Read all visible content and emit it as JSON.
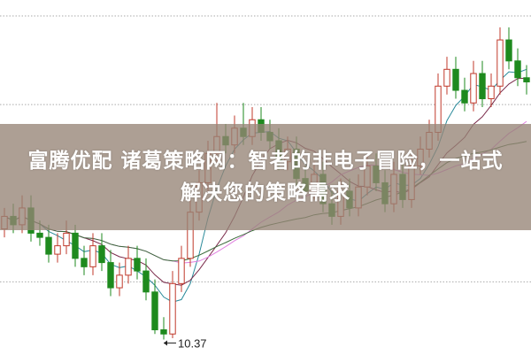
{
  "title": "富腾优配 诸葛策略网：智者的非电子冒险，一站式解决您的策略需求",
  "chart_data": {
    "type": "candlestick",
    "ylim": [
      10.0,
      18.45
    ],
    "gridlines": [
      18.07,
      15.96,
      11.74
    ],
    "grid": "dotted horizontal",
    "low_annotation": {
      "label": "10.37",
      "value": 10.37,
      "index": 18
    },
    "colors": {
      "up": "#c0392b",
      "down": "#1e8a1e",
      "ma5": "#2a8a9a",
      "ma10": "#7a2a4a",
      "ma20": "#e080e0",
      "ma30": "#3a6a3a",
      "ma60": "#2aa0b0",
      "grid": "#aaaaaa"
    },
    "ma_periods": [
      5,
      10,
      20,
      30
    ],
    "ohlc": [
      [
        13.0,
        13.5,
        12.8,
        13.3
      ],
      [
        13.3,
        13.6,
        12.9,
        13.1
      ],
      [
        13.1,
        13.8,
        12.9,
        13.5
      ],
      [
        13.5,
        13.8,
        12.7,
        12.9
      ],
      [
        12.9,
        13.2,
        12.6,
        12.8
      ],
      [
        12.8,
        13.1,
        12.2,
        12.4
      ],
      [
        12.4,
        12.9,
        12.2,
        12.6
      ],
      [
        12.6,
        13.2,
        12.4,
        12.9
      ],
      [
        12.9,
        13.1,
        12.1,
        12.3
      ],
      [
        12.3,
        12.6,
        11.9,
        12.1
      ],
      [
        12.1,
        12.9,
        11.9,
        12.6
      ],
      [
        12.6,
        12.9,
        12.0,
        12.2
      ],
      [
        12.2,
        12.5,
        11.4,
        11.6
      ],
      [
        11.6,
        12.2,
        11.4,
        11.9
      ],
      [
        11.9,
        12.6,
        11.7,
        12.3
      ],
      [
        12.3,
        12.6,
        11.8,
        12.0
      ],
      [
        12.0,
        12.3,
        11.3,
        11.5
      ],
      [
        11.5,
        11.8,
        10.5,
        10.6
      ],
      [
        10.6,
        10.9,
        10.37,
        10.5
      ],
      [
        10.5,
        12.0,
        10.4,
        11.7
      ],
      [
        11.7,
        12.6,
        11.5,
        12.3
      ],
      [
        12.3,
        13.7,
        12.1,
        13.4
      ],
      [
        13.4,
        14.4,
        13.2,
        14.1
      ],
      [
        14.1,
        15.1,
        13.9,
        14.8
      ],
      [
        14.8,
        16.0,
        14.6,
        15.2
      ],
      [
        15.2,
        15.5,
        14.8,
        15.0
      ],
      [
        15.0,
        15.7,
        14.8,
        15.4
      ],
      [
        15.4,
        16.0,
        15.0,
        15.2
      ],
      [
        15.2,
        15.9,
        15.0,
        15.6
      ],
      [
        15.6,
        15.9,
        15.1,
        15.3
      ],
      [
        15.3,
        15.6,
        14.9,
        15.1
      ],
      [
        15.1,
        15.4,
        14.4,
        14.6
      ],
      [
        14.6,
        15.2,
        14.4,
        14.9
      ],
      [
        14.9,
        15.2,
        14.0,
        14.2
      ],
      [
        14.2,
        14.5,
        13.7,
        13.9
      ],
      [
        13.9,
        14.6,
        13.7,
        14.3
      ],
      [
        14.3,
        14.6,
        13.4,
        13.6
      ],
      [
        13.6,
        13.9,
        13.1,
        13.3
      ],
      [
        13.3,
        14.2,
        13.1,
        13.9
      ],
      [
        13.9,
        14.2,
        13.3,
        13.5
      ],
      [
        13.5,
        14.3,
        13.3,
        14.0
      ],
      [
        14.0,
        14.8,
        13.8,
        14.5
      ],
      [
        14.5,
        14.8,
        13.9,
        14.1
      ],
      [
        14.1,
        14.4,
        13.4,
        13.6
      ],
      [
        13.6,
        14.6,
        13.4,
        14.3
      ],
      [
        14.3,
        14.6,
        13.5,
        13.7
      ],
      [
        13.7,
        14.8,
        13.5,
        14.5
      ],
      [
        14.5,
        15.2,
        14.3,
        14.9
      ],
      [
        14.9,
        15.6,
        14.7,
        15.3
      ],
      [
        15.3,
        16.7,
        15.1,
        16.4
      ],
      [
        16.4,
        17.1,
        16.2,
        16.8
      ],
      [
        16.8,
        17.1,
        16.1,
        16.3
      ],
      [
        16.3,
        16.6,
        15.8,
        16.0
      ],
      [
        16.0,
        17.0,
        15.8,
        16.7
      ],
      [
        16.7,
        17.0,
        15.9,
        16.1
      ],
      [
        16.1,
        16.7,
        15.9,
        16.4
      ],
      [
        16.4,
        17.8,
        16.2,
        17.5
      ],
      [
        17.5,
        17.8,
        16.8,
        17.0
      ],
      [
        17.0,
        17.3,
        16.4,
        16.6
      ],
      [
        16.6,
        16.9,
        16.2,
        16.5
      ]
    ]
  }
}
